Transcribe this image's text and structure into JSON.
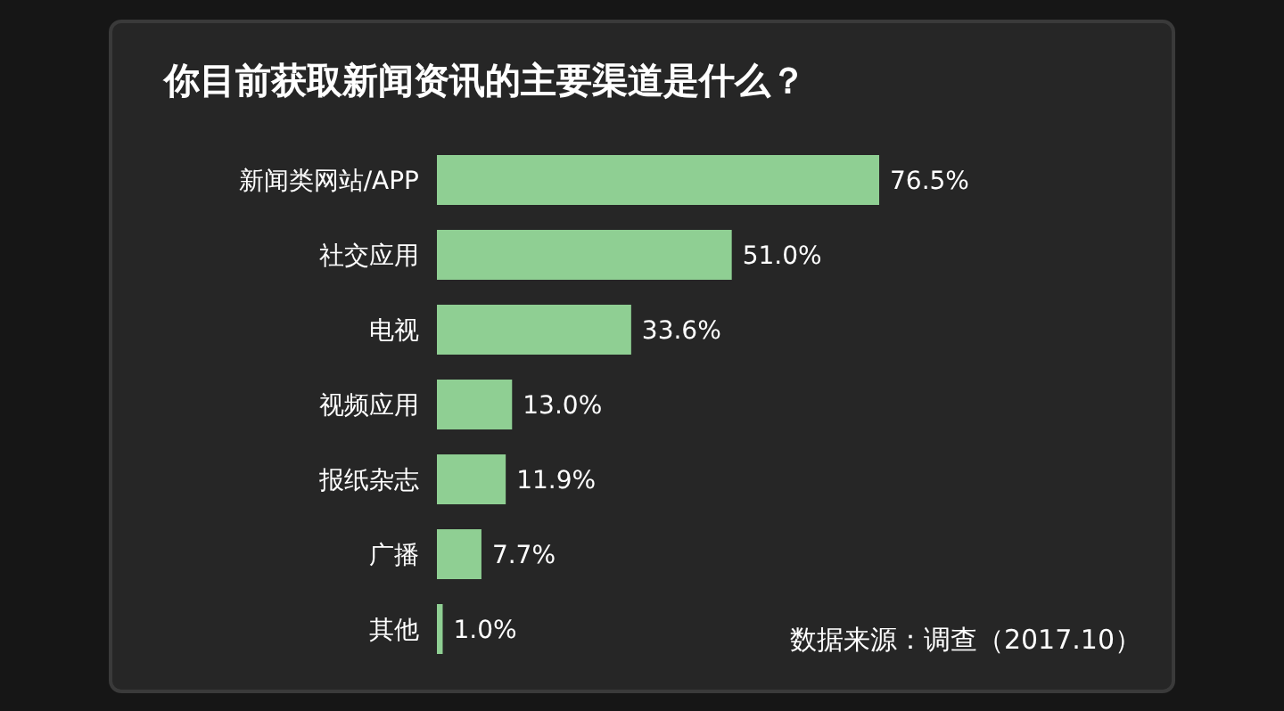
{
  "chart_data": {
    "type": "bar",
    "orientation": "horizontal",
    "title": "你目前获取新闻资讯的主要渠道是什么？",
    "categories": [
      "新闻类网站/APP",
      "社交应用",
      "电视",
      "视频应用",
      "报纸杂志",
      "广播",
      "其他"
    ],
    "values": [
      76.5,
      51.0,
      33.6,
      13.0,
      11.9,
      7.7,
      1.0
    ],
    "value_labels": [
      "76.5%",
      "51.0%",
      "33.6%",
      "13.0%",
      "11.9%",
      "7.7%",
      "1.0%"
    ],
    "color": "#8fcf93",
    "annotations": [
      "数据来源：调查（2017.10）"
    ]
  }
}
